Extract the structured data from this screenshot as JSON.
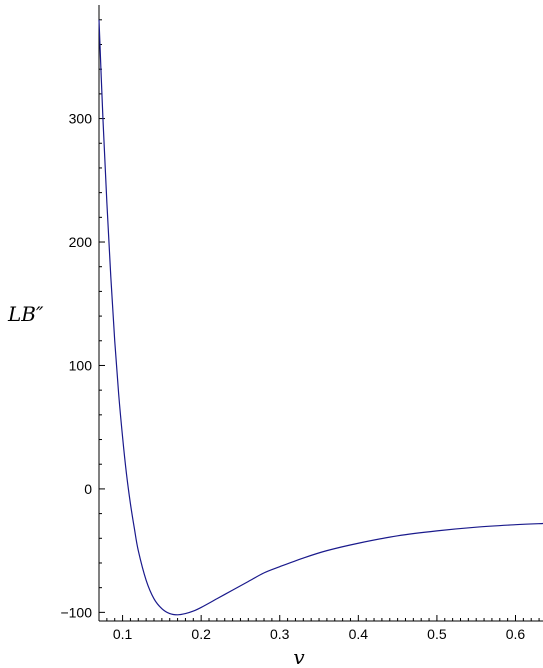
{
  "chart_data": {
    "type": "line",
    "title": "",
    "xlabel": "v",
    "ylabel": "LB″",
    "xlim": [
      0.07,
      0.635
    ],
    "ylim": [
      -107,
      392
    ],
    "x_ticks": [
      0.1,
      0.2,
      0.3,
      0.4,
      0.5,
      0.6
    ],
    "x_tick_labels": [
      "0.1",
      "0.2",
      "0.3",
      "0.4",
      "0.5",
      "0.6"
    ],
    "y_ticks": [
      -100,
      0,
      100,
      200,
      300
    ],
    "y_tick_labels": [
      "−100",
      "0",
      "100",
      "200",
      "300"
    ],
    "grid": false,
    "legend": "none",
    "colors": {
      "line": "#1a1a8c",
      "axis": "#000000"
    },
    "series": [
      {
        "x": [
          0.07,
          0.075,
          0.08,
          0.085,
          0.09,
          0.095,
          0.1,
          0.105,
          0.11,
          0.115,
          0.12,
          0.13,
          0.14,
          0.15,
          0.16,
          0.17,
          0.18,
          0.19,
          0.2,
          0.22,
          0.24,
          0.26,
          0.28,
          0.3,
          0.33,
          0.36,
          0.4,
          0.45,
          0.5,
          0.55,
          0.6,
          0.635
        ],
        "y": [
          380,
          300,
          232,
          172,
          120,
          77,
          42,
          12,
          -12,
          -32,
          -50,
          -74,
          -89,
          -97,
          -101,
          -102,
          -101,
          -99,
          -96,
          -89,
          -82,
          -75,
          -68,
          -63,
          -56,
          -50,
          -44,
          -38,
          -34,
          -31,
          -29,
          -28
        ]
      }
    ]
  }
}
